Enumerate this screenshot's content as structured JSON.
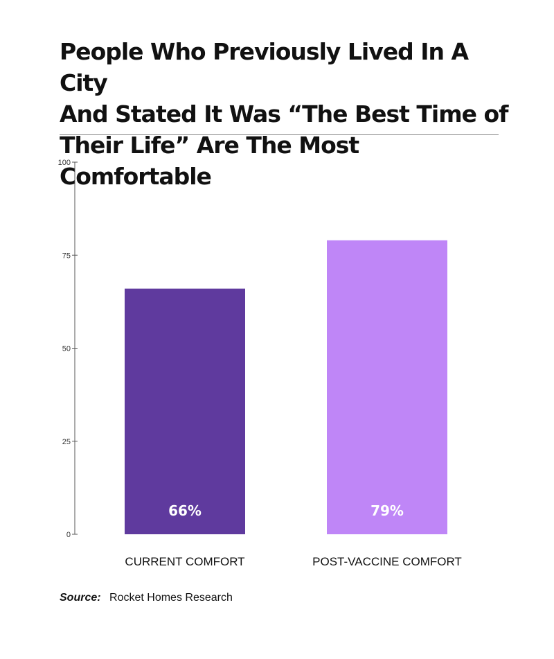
{
  "title_lines": [
    "People Who Previously Lived In A City",
    "And Stated It Was “The Best Time of",
    "Their Life” Are The Most Comfortable"
  ],
  "source": {
    "label": "Source:",
    "text": "Rocket Homes Research"
  },
  "colors": {
    "current": "#5f3a9e",
    "post_vaccine": "#bf86f7",
    "axis": "#555555"
  },
  "chart_data": {
    "type": "bar",
    "categories": [
      "CURRENT COMFORT",
      "POST-VACCINE COMFORT"
    ],
    "values": [
      66,
      79
    ],
    "labels": [
      "66%",
      "79%"
    ],
    "ylim": [
      0,
      100
    ],
    "yticks": [
      0,
      25,
      50,
      75,
      100
    ],
    "grid": false,
    "xlabel": "",
    "ylabel": ""
  }
}
